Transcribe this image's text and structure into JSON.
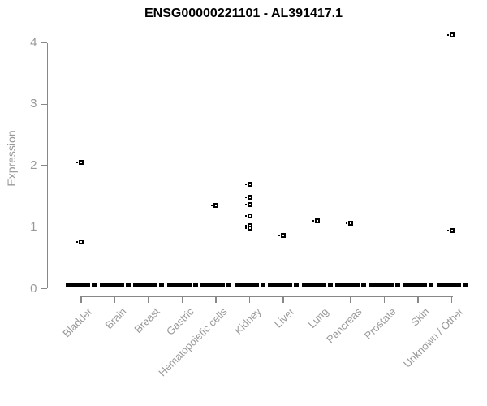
{
  "chart_data": {
    "type": "scatter",
    "subtype": "strip-plot-by-category",
    "title": "ENSG00000221101 - AL391417.1",
    "xlabel": "",
    "ylabel": "Expression",
    "ylim": [
      0,
      4
    ],
    "yticks": [
      "0",
      "1",
      "2",
      "3",
      "4"
    ],
    "grid": "off",
    "legend": "none",
    "categories": [
      "Bladder",
      "Brain",
      "Breast",
      "Gastric",
      "Hematopoietic cells",
      "Kidney",
      "Liver",
      "Lung",
      "Pancreas",
      "Prostate",
      "Skin",
      "Unknown / Other"
    ],
    "series": [
      {
        "category": "Bladder",
        "points": [
          2.06,
          0.76
        ]
      },
      {
        "category": "Brain",
        "points": []
      },
      {
        "category": "Breast",
        "points": []
      },
      {
        "category": "Gastric",
        "points": []
      },
      {
        "category": "Hematopoietic cells",
        "points": [
          1.36
        ]
      },
      {
        "category": "Kidney",
        "points": [
          1.7,
          1.49,
          1.37,
          1.18,
          1.02,
          0.99
        ]
      },
      {
        "category": "Liver",
        "points": [
          0.87
        ]
      },
      {
        "category": "Lung",
        "points": [
          1.1
        ]
      },
      {
        "category": "Pancreas",
        "points": [
          1.06
        ]
      },
      {
        "category": "Prostate",
        "points": []
      },
      {
        "category": "Skin",
        "points": []
      },
      {
        "category": "Unknown / Other",
        "points": [
          4.13,
          0.94
        ]
      }
    ],
    "baseline_cluster": {
      "note": "dense horizontal dash of overlapping samples at ~0 expression present in every category",
      "value": 0.05,
      "categories_with_cluster": [
        "Bladder",
        "Brain",
        "Breast",
        "Gastric",
        "Hematopoietic cells",
        "Kidney",
        "Liver",
        "Lung",
        "Pancreas",
        "Prostate",
        "Skin",
        "Unknown / Other"
      ]
    },
    "colors": {
      "point": "#000000",
      "axis": "#888888",
      "tick_label": "#999999",
      "axis_title": "#999999",
      "title": "#000000",
      "background": "#ffffff"
    }
  }
}
